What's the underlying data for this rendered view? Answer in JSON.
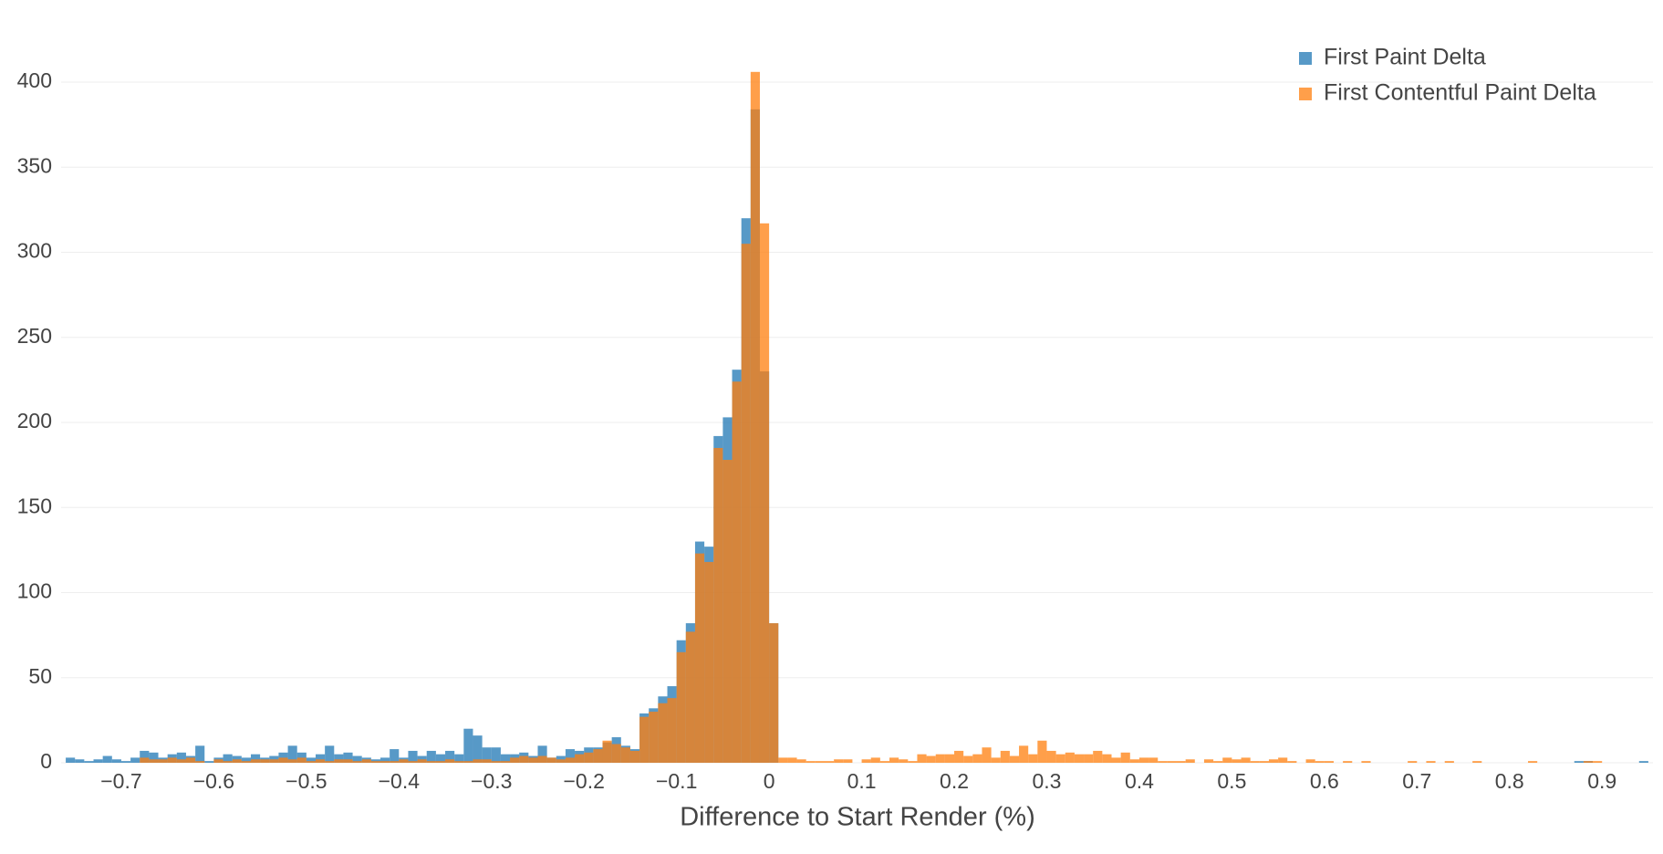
{
  "chart_data": {
    "type": "histogram",
    "x_label": "Difference to Start Render (%)",
    "bins": [
      -0.76,
      -0.75,
      -0.74,
      -0.73,
      -0.72,
      -0.71,
      -0.7,
      -0.69,
      -0.68,
      -0.67,
      -0.66,
      -0.65,
      -0.64,
      -0.63,
      -0.62,
      -0.61,
      -0.6,
      -0.59,
      -0.58,
      -0.57,
      -0.56,
      -0.55,
      -0.54,
      -0.53,
      -0.52,
      -0.51,
      -0.5,
      -0.49,
      -0.48,
      -0.47,
      -0.46,
      -0.45,
      -0.44,
      -0.43,
      -0.42,
      -0.41,
      -0.4,
      -0.39,
      -0.38,
      -0.37,
      -0.36,
      -0.35,
      -0.34,
      -0.33,
      -0.32,
      -0.31,
      -0.3,
      -0.29,
      -0.28,
      -0.27,
      -0.26,
      -0.25,
      -0.24,
      -0.23,
      -0.22,
      -0.21,
      -0.2,
      -0.19,
      -0.18,
      -0.17,
      -0.16,
      -0.15,
      -0.14,
      -0.13,
      -0.12,
      -0.11,
      -0.1,
      -0.09,
      -0.08,
      -0.07,
      -0.06,
      -0.05,
      -0.04,
      -0.03,
      -0.02,
      -0.01,
      0,
      0.01,
      0.02,
      0.03,
      0.04,
      0.05,
      0.06,
      0.07,
      0.08,
      0.09,
      0.1,
      0.11,
      0.12,
      0.13,
      0.14,
      0.15,
      0.16,
      0.17,
      0.18,
      0.19,
      0.2,
      0.21,
      0.22,
      0.23,
      0.24,
      0.25,
      0.26,
      0.27,
      0.28,
      0.29,
      0.3,
      0.31,
      0.32,
      0.33,
      0.34,
      0.35,
      0.36,
      0.37,
      0.38,
      0.39,
      0.4,
      0.41,
      0.42,
      0.43,
      0.44,
      0.45,
      0.46,
      0.47,
      0.48,
      0.49,
      0.5,
      0.51,
      0.52,
      0.53,
      0.54,
      0.55,
      0.56,
      0.57,
      0.58,
      0.59,
      0.6,
      0.61,
      0.62,
      0.63,
      0.64,
      0.65,
      0.66,
      0.67,
      0.68,
      0.69,
      0.7,
      0.71,
      0.72,
      0.73,
      0.74,
      0.75,
      0.76,
      0.77,
      0.78,
      0.79,
      0.8,
      0.81,
      0.82,
      0.83,
      0.84,
      0.85,
      0.86,
      0.87,
      0.88,
      0.89,
      0.9,
      0.91,
      0.92,
      0.93,
      0.94,
      0.95
    ],
    "series": [
      {
        "name": "First Paint Delta",
        "color": "#1f77b4",
        "values": [
          3,
          2,
          1,
          2,
          4,
          2,
          1,
          3,
          7,
          6,
          3,
          5,
          6,
          4,
          10,
          1,
          3,
          5,
          4,
          3,
          5,
          3,
          4,
          6,
          10,
          6,
          3,
          5,
          10,
          5,
          6,
          4,
          3,
          2,
          3,
          8,
          3,
          7,
          4,
          7,
          5,
          7,
          5,
          20,
          16,
          9,
          9,
          5,
          5,
          6,
          4,
          10,
          3,
          4,
          8,
          7,
          9,
          9,
          12,
          15,
          10,
          8,
          29,
          32,
          39,
          45,
          72,
          82,
          130,
          127,
          192,
          203,
          231,
          320,
          384,
          230,
          82,
          0,
          0,
          0,
          0,
          0,
          0,
          0,
          0,
          0,
          0,
          0,
          0,
          0,
          0,
          0,
          0,
          0,
          0,
          0,
          0,
          0,
          0,
          0,
          0,
          0,
          0,
          0,
          0,
          0,
          0,
          0,
          0,
          0,
          0,
          0,
          0,
          0,
          0,
          0,
          0,
          0,
          0,
          0,
          0,
          0,
          0,
          0,
          0,
          0,
          0,
          0,
          0,
          0,
          0,
          0,
          0,
          0,
          0,
          0,
          0,
          0,
          0,
          0,
          0,
          0,
          0,
          0,
          0,
          0,
          0,
          0,
          0,
          0,
          0,
          0,
          0,
          0,
          0,
          0,
          0,
          0,
          0,
          0,
          0,
          0,
          0,
          1,
          1,
          0,
          0,
          0,
          0,
          0,
          1
        ]
      },
      {
        "name": "First Contentful Paint Delta",
        "color": "#ff7f0e",
        "values": [
          0,
          0,
          0,
          0,
          0,
          0,
          0,
          0,
          3,
          2,
          2,
          3,
          2,
          3,
          1,
          0,
          2,
          1,
          2,
          1,
          2,
          2,
          2,
          3,
          2,
          3,
          1,
          2,
          1,
          2,
          2,
          1,
          2,
          1,
          1,
          1,
          2,
          1,
          2,
          1,
          1,
          2,
          1,
          1,
          2,
          2,
          1,
          1,
          3,
          4,
          3,
          4,
          3,
          2,
          3,
          5,
          6,
          8,
          13,
          11,
          9,
          7,
          27,
          30,
          35,
          38,
          65,
          77,
          123,
          118,
          185,
          178,
          224,
          305,
          406,
          317,
          82,
          3,
          3,
          2,
          1,
          1,
          1,
          2,
          2,
          0,
          2,
          3,
          1,
          3,
          2,
          1,
          5,
          4,
          5,
          5,
          7,
          4,
          5,
          9,
          3,
          7,
          4,
          10,
          5,
          13,
          7,
          5,
          6,
          5,
          5,
          7,
          5,
          3,
          6,
          2,
          3,
          3,
          1,
          1,
          1,
          2,
          0,
          2,
          1,
          3,
          2,
          3,
          1,
          1,
          2,
          3,
          1,
          0,
          2,
          1,
          1,
          0,
          1,
          0,
          1,
          0,
          0,
          0,
          0,
          1,
          0,
          1,
          0,
          1,
          0,
          0,
          1,
          0,
          0,
          0,
          0,
          0,
          1,
          0,
          0,
          0,
          0,
          0,
          1,
          1,
          0,
          0,
          0,
          0,
          0
        ]
      }
    ],
    "xlim": [
      -0.765,
      0.955
    ],
    "xticks": [
      {
        "value": -0.7,
        "label": "−0.7"
      },
      {
        "value": -0.6,
        "label": "−0.6"
      },
      {
        "value": -0.5,
        "label": "−0.5"
      },
      {
        "value": -0.4,
        "label": "−0.4"
      },
      {
        "value": -0.3,
        "label": "−0.3"
      },
      {
        "value": -0.2,
        "label": "−0.2"
      },
      {
        "value": -0.1,
        "label": "−0.1"
      },
      0,
      0.1,
      0.2,
      0.3,
      0.4,
      0.5,
      0.6,
      0.7,
      0.8,
      0.9
    ],
    "ylim": [
      0,
      427
    ],
    "yticks": [
      0,
      50,
      100,
      150,
      200,
      250,
      300,
      350,
      400
    ],
    "grid": true,
    "legend": "top-right",
    "opacity": 0.75
  }
}
